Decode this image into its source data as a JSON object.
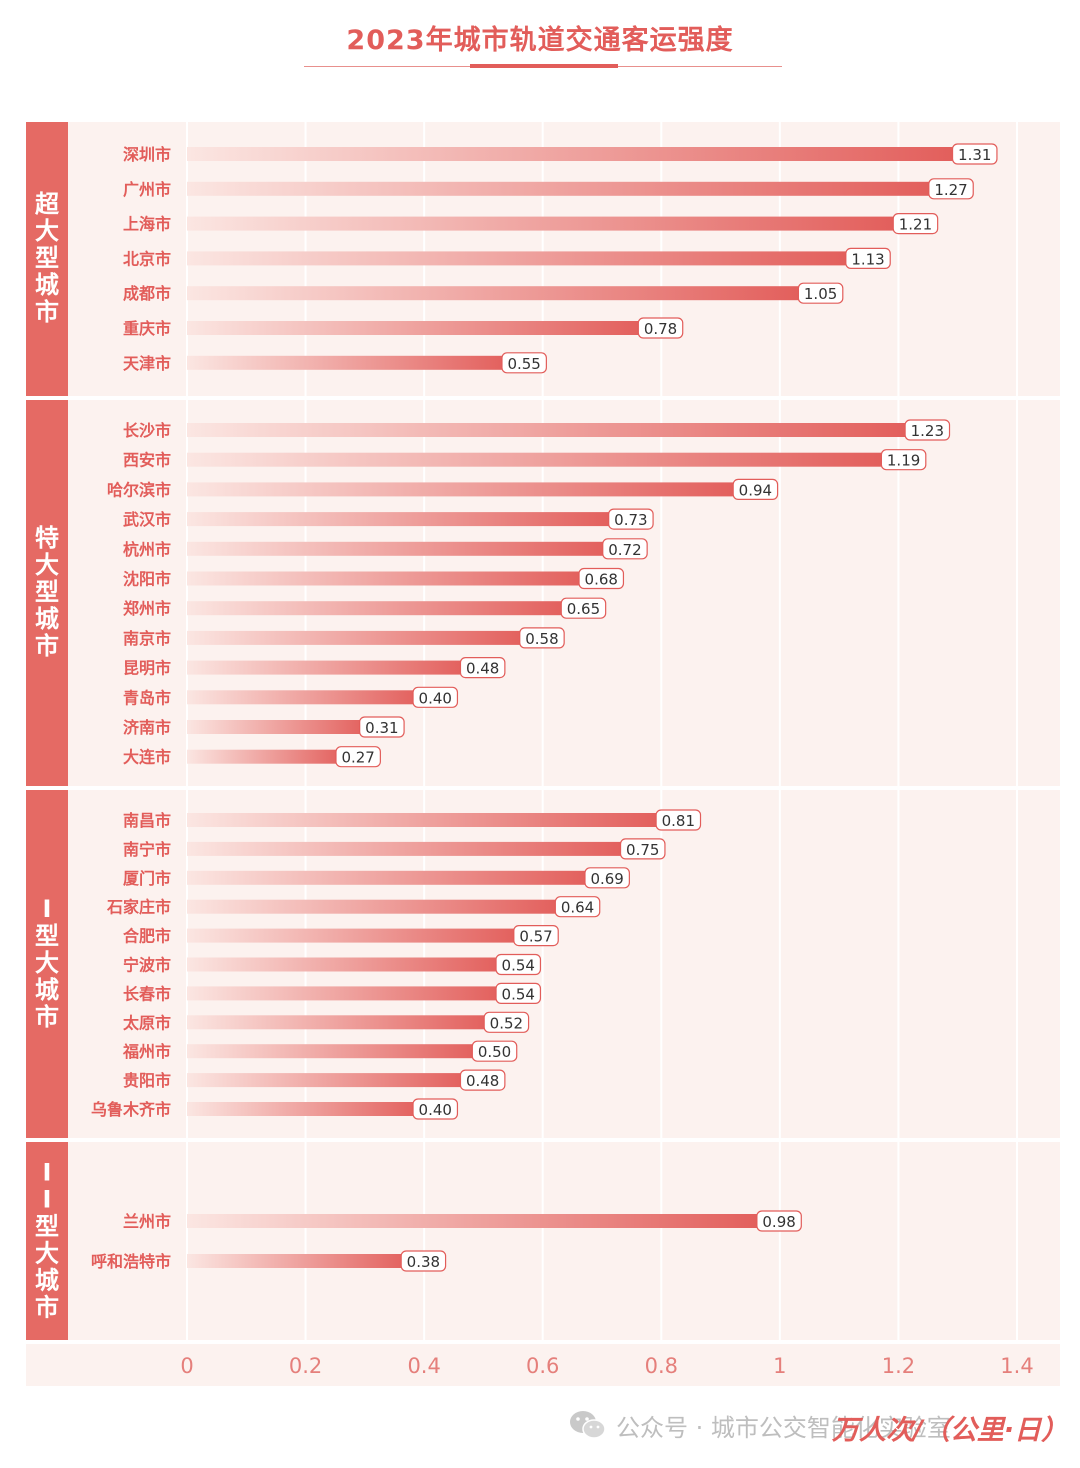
{
  "title": "2023年城市轨道交通客运强度",
  "unit_label": "万人次/（公里·日）",
  "watermark": {
    "icon": "wechat-icon",
    "text": "公众号 · 城市公交智能化实验室"
  },
  "colors": {
    "accent": "#e25d5a",
    "group_band": "#e56a64",
    "panel_bg": "#fcf2ef",
    "bar_light": "#fbe3df",
    "bar_dark": "#e25d5a",
    "label_text": "#e25d5a",
    "axis_text": "#e57f7b"
  },
  "chart_data": {
    "type": "bar",
    "orientation": "horizontal",
    "title": "2023年城市轨道交通客运强度",
    "xlabel": "万人次/（公里·日）",
    "xlim": [
      0,
      1.4
    ],
    "xticks": [
      0,
      0.2,
      0.4,
      0.6,
      0.8,
      1,
      1.2,
      1.4
    ],
    "xtick_labels": [
      "0",
      "0.2",
      "0.4",
      "0.6",
      "0.8",
      "1",
      "1.2",
      "1.4"
    ],
    "grid": true,
    "groups": [
      {
        "name": "超大型城市",
        "categories": [
          "深圳市",
          "广州市",
          "上海市",
          "北京市",
          "成都市",
          "重庆市",
          "天津市"
        ],
        "values": [
          1.31,
          1.27,
          1.21,
          1.13,
          1.05,
          0.78,
          0.55
        ],
        "value_labels": [
          "1.31",
          "1.27",
          "1.21",
          "1.13",
          "1.05",
          "0.78",
          "0.55"
        ]
      },
      {
        "name": "特大型城市",
        "categories": [
          "长沙市",
          "西安市",
          "哈尔滨市",
          "武汉市",
          "杭州市",
          "沈阳市",
          "郑州市",
          "南京市",
          "昆明市",
          "青岛市",
          "济南市",
          "大连市"
        ],
        "values": [
          1.23,
          1.19,
          0.94,
          0.73,
          0.72,
          0.68,
          0.65,
          0.58,
          0.48,
          0.4,
          0.31,
          0.27
        ],
        "value_labels": [
          "1.23",
          "1.19",
          "0.94",
          "0.73",
          "0.72",
          "0.68",
          "0.65",
          "0.58",
          "0.48",
          "0.40",
          "0.31",
          "0.27"
        ]
      },
      {
        "name": "I型大城市",
        "categories": [
          "南昌市",
          "南宁市",
          "厦门市",
          "石家庄市",
          "合肥市",
          "宁波市",
          "长春市",
          "太原市",
          "福州市",
          "贵阳市",
          "乌鲁木齐市"
        ],
        "values": [
          0.81,
          0.75,
          0.69,
          0.64,
          0.57,
          0.54,
          0.54,
          0.52,
          0.5,
          0.48,
          0.4
        ],
        "value_labels": [
          "0.81",
          "0.75",
          "0.69",
          "0.64",
          "0.57",
          "0.54",
          "0.54",
          "0.52",
          "0.50",
          "0.48",
          "0.40"
        ]
      },
      {
        "name": "II型大城市",
        "categories": [
          "兰州市",
          "呼和浩特市"
        ],
        "values": [
          0.98,
          0.38
        ],
        "value_labels": [
          "0.98",
          "0.38"
        ]
      }
    ]
  }
}
